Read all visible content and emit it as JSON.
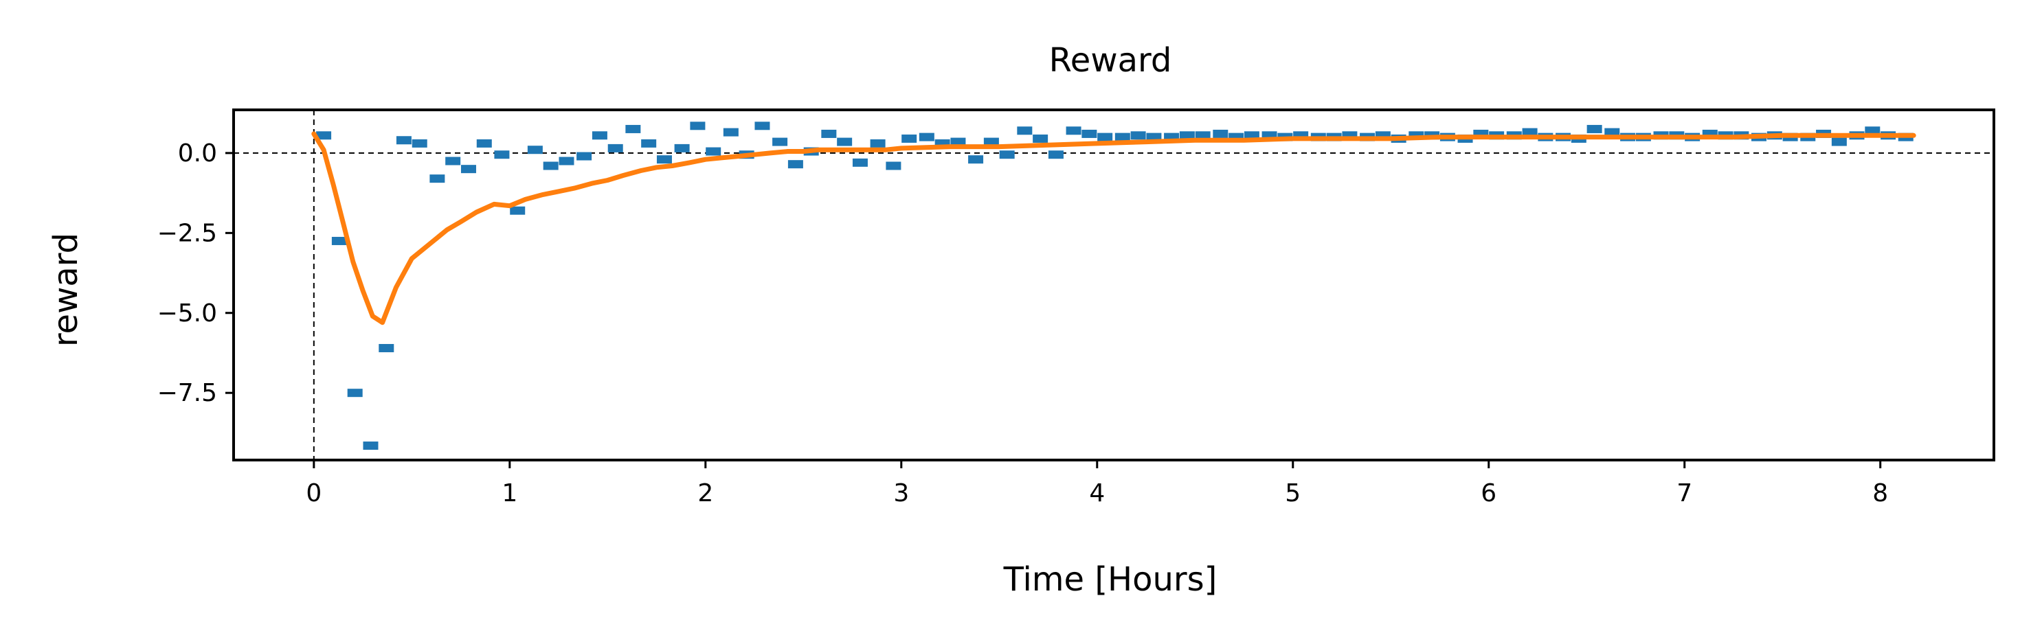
{
  "chart_data": {
    "type": "scatter",
    "title": "Reward",
    "xlabel": "Time [Hours]",
    "ylabel": "reward",
    "xlim": [
      -0.41,
      8.58
    ],
    "ylim": [
      -9.6,
      1.35
    ],
    "x_ticks": [
      0,
      1,
      2,
      3,
      4,
      5,
      6,
      7,
      8
    ],
    "x_tick_labels": [
      "0",
      "1",
      "2",
      "3",
      "4",
      "5",
      "6",
      "7",
      "8"
    ],
    "y_ticks": [
      0.0,
      -2.5,
      -5.0,
      -7.5
    ],
    "y_tick_labels": [
      "0.0",
      "−2.5",
      "−5.0",
      "−7.5"
    ],
    "grid": false,
    "reference_lines": {
      "horizontal": 0.0,
      "vertical": 0.0,
      "style": "dashed"
    },
    "colors": {
      "scatter": "#1f77b4",
      "line": "#ff7f0e",
      "axes": "#000000"
    },
    "series": [
      {
        "kind": "scatter",
        "marker": "short-horizontal-bar",
        "x": [
          0.05,
          0.13,
          0.21,
          0.29,
          0.37,
          0.46,
          0.54,
          0.63,
          0.71,
          0.79,
          0.87,
          0.96,
          1.04,
          1.13,
          1.21,
          1.29,
          1.38,
          1.46,
          1.54,
          1.63,
          1.71,
          1.79,
          1.88,
          1.96,
          2.04,
          2.13,
          2.21,
          2.29,
          2.38,
          2.46,
          2.54,
          2.63,
          2.71,
          2.79,
          2.88,
          2.96,
          3.04,
          3.13,
          3.21,
          3.29,
          3.38,
          3.46,
          3.54,
          3.63,
          3.71,
          3.79,
          3.88,
          3.96,
          4.04,
          4.13,
          4.21,
          4.29,
          4.38,
          4.46,
          4.54,
          4.63,
          4.71,
          4.79,
          4.88,
          4.96,
          5.04,
          5.13,
          5.21,
          5.29,
          5.38,
          5.46,
          5.54,
          5.63,
          5.71,
          5.79,
          5.88,
          5.96,
          6.04,
          6.13,
          6.21,
          6.29,
          6.38,
          6.46,
          6.54,
          6.63,
          6.71,
          6.79,
          6.88,
          6.96,
          7.04,
          7.13,
          7.21,
          7.29,
          7.38,
          7.46,
          7.54,
          7.63,
          7.71,
          7.79,
          7.88,
          7.96,
          8.04,
          8.13
        ],
        "y": [
          0.55,
          -2.75,
          -7.5,
          -9.15,
          -6.1,
          0.4,
          0.3,
          -0.8,
          -0.25,
          -0.5,
          0.3,
          -0.05,
          -1.8,
          0.1,
          -0.4,
          -0.25,
          -0.1,
          0.55,
          0.15,
          0.75,
          0.3,
          -0.2,
          0.15,
          0.85,
          0.05,
          0.65,
          -0.05,
          0.85,
          0.35,
          -0.35,
          0.05,
          0.6,
          0.35,
          -0.3,
          0.3,
          -0.4,
          0.45,
          0.5,
          0.3,
          0.35,
          -0.2,
          0.35,
          -0.05,
          0.7,
          0.45,
          -0.05,
          0.7,
          0.6,
          0.5,
          0.5,
          0.55,
          0.5,
          0.5,
          0.55,
          0.55,
          0.6,
          0.5,
          0.55,
          0.55,
          0.5,
          0.55,
          0.5,
          0.5,
          0.55,
          0.5,
          0.55,
          0.45,
          0.55,
          0.55,
          0.5,
          0.45,
          0.6,
          0.55,
          0.55,
          0.65,
          0.5,
          0.5,
          0.45,
          0.75,
          0.65,
          0.5,
          0.5,
          0.55,
          0.55,
          0.5,
          0.6,
          0.55,
          0.55,
          0.5,
          0.55,
          0.5,
          0.5,
          0.6,
          0.35,
          0.55,
          0.7,
          0.55,
          0.5
        ]
      },
      {
        "kind": "line",
        "x": [
          0.0,
          0.05,
          0.1,
          0.15,
          0.2,
          0.25,
          0.3,
          0.35,
          0.42,
          0.5,
          0.6,
          0.68,
          0.75,
          0.83,
          0.92,
          1.0,
          1.08,
          1.17,
          1.25,
          1.33,
          1.42,
          1.5,
          1.58,
          1.67,
          1.75,
          1.83,
          1.92,
          2.0,
          2.08,
          2.17,
          2.25,
          2.33,
          2.42,
          2.5,
          2.58,
          2.67,
          2.75,
          2.83,
          2.92,
          3.0,
          3.25,
          3.5,
          3.75,
          4.0,
          4.25,
          4.5,
          4.75,
          5.0,
          5.25,
          5.5,
          5.75,
          6.0,
          6.25,
          6.5,
          6.75,
          7.0,
          7.25,
          7.5,
          7.75,
          8.0,
          8.17
        ],
        "y": [
          0.6,
          0.1,
          -1.0,
          -2.2,
          -3.4,
          -4.3,
          -5.1,
          -5.3,
          -4.2,
          -3.3,
          -2.8,
          -2.4,
          -2.15,
          -1.85,
          -1.6,
          -1.65,
          -1.45,
          -1.3,
          -1.2,
          -1.1,
          -0.95,
          -0.85,
          -0.7,
          -0.55,
          -0.45,
          -0.4,
          -0.3,
          -0.2,
          -0.15,
          -0.1,
          -0.05,
          0.0,
          0.05,
          0.05,
          0.1,
          0.1,
          0.1,
          0.1,
          0.1,
          0.15,
          0.2,
          0.2,
          0.25,
          0.3,
          0.35,
          0.4,
          0.4,
          0.45,
          0.45,
          0.45,
          0.5,
          0.5,
          0.5,
          0.5,
          0.5,
          0.5,
          0.5,
          0.55,
          0.55,
          0.55,
          0.55
        ]
      }
    ]
  }
}
